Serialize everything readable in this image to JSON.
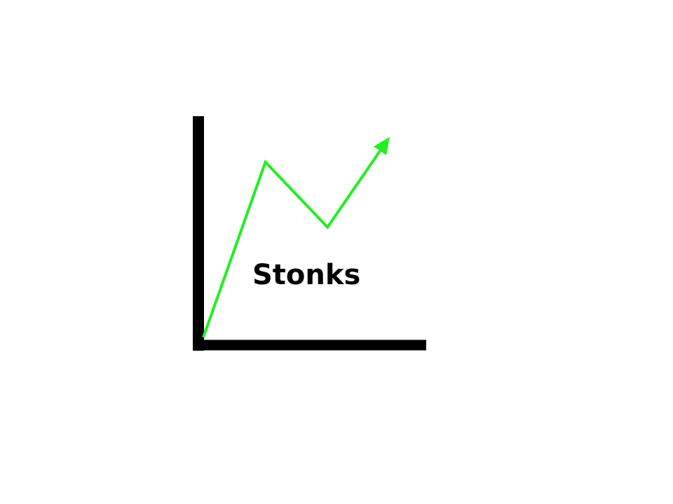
{
  "chart_data": {
    "type": "line",
    "x": [
      0,
      1,
      2,
      3
    ],
    "series": [
      {
        "values": [
          0,
          3.5,
          2.2,
          4.0
        ]
      }
    ],
    "ylim": [
      0,
      4.5
    ],
    "xlim": [
      0,
      3.5
    ],
    "annotation": "Stonks",
    "grid": false,
    "legend": "none",
    "line_color": "#22ee22",
    "axis_color": "#000000",
    "trend_end": "arrow-head"
  }
}
